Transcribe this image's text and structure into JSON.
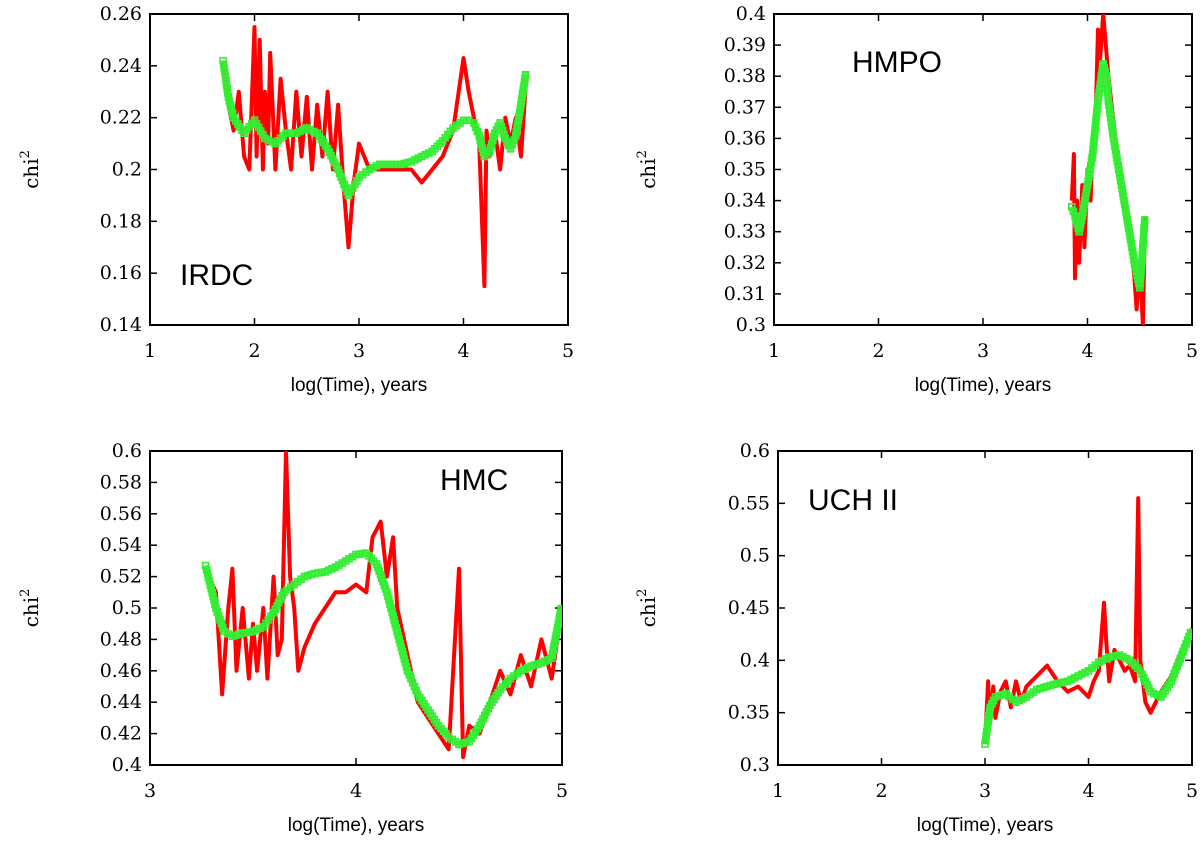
{
  "chart_data": [
    {
      "type": "line",
      "panel_label": "IRDC",
      "xlabel": "log(Time), years",
      "ylabel": "chi",
      "ylabel_sup": "2",
      "xlim": [
        1,
        5
      ],
      "ylim": [
        0.14,
        0.26
      ],
      "xticks": [
        "1",
        "2",
        "3",
        "4",
        "5"
      ],
      "xtick_values": [
        1,
        2,
        3,
        4,
        5
      ],
      "yticks": [
        "0.14",
        "0.16",
        "0.18",
        "0.2",
        "0.22",
        "0.24",
        "0.26"
      ],
      "ytick_values": [
        0.14,
        0.16,
        0.18,
        0.2,
        0.22,
        0.24,
        0.26
      ],
      "series": [
        {
          "color": "#ff0000",
          "style": "line",
          "x": [
            1.7,
            1.75,
            1.8,
            1.85,
            1.9,
            1.95,
            2.0,
            2.02,
            2.05,
            2.08,
            2.1,
            2.13,
            2.15,
            2.2,
            2.25,
            2.3,
            2.35,
            2.4,
            2.45,
            2.5,
            2.55,
            2.6,
            2.65,
            2.7,
            2.75,
            2.8,
            2.85,
            2.9,
            2.95,
            3.0,
            3.1,
            3.2,
            3.3,
            3.4,
            3.5,
            3.6,
            3.7,
            3.8,
            3.9,
            4.0,
            4.05,
            4.1,
            4.15,
            4.2,
            4.22,
            4.25,
            4.3,
            4.35,
            4.4,
            4.45,
            4.5,
            4.55,
            4.6
          ],
          "y": [
            0.242,
            0.225,
            0.215,
            0.23,
            0.205,
            0.2,
            0.255,
            0.205,
            0.25,
            0.2,
            0.23,
            0.21,
            0.245,
            0.2,
            0.235,
            0.215,
            0.2,
            0.23,
            0.205,
            0.228,
            0.2,
            0.225,
            0.205,
            0.23,
            0.2,
            0.225,
            0.195,
            0.17,
            0.195,
            0.21,
            0.2,
            0.2,
            0.2,
            0.2,
            0.2,
            0.195,
            0.2,
            0.205,
            0.215,
            0.243,
            0.23,
            0.22,
            0.21,
            0.155,
            0.215,
            0.205,
            0.215,
            0.2,
            0.22,
            0.21,
            0.22,
            0.205,
            0.235
          ]
        },
        {
          "color": "#33ee33",
          "style": "dots",
          "x": [
            1.7,
            1.75,
            1.8,
            1.9,
            2.0,
            2.1,
            2.2,
            2.3,
            2.4,
            2.5,
            2.6,
            2.7,
            2.8,
            2.9,
            3.0,
            3.1,
            3.2,
            3.3,
            3.4,
            3.5,
            3.6,
            3.7,
            3.8,
            3.9,
            4.0,
            4.05,
            4.1,
            4.15,
            4.2,
            4.25,
            4.3,
            4.35,
            4.4,
            4.45,
            4.5,
            4.55,
            4.6
          ],
          "y": [
            0.242,
            0.228,
            0.22,
            0.214,
            0.219,
            0.212,
            0.21,
            0.214,
            0.214,
            0.216,
            0.214,
            0.208,
            0.2,
            0.19,
            0.197,
            0.2,
            0.202,
            0.202,
            0.202,
            0.203,
            0.205,
            0.207,
            0.211,
            0.216,
            0.219,
            0.219,
            0.218,
            0.213,
            0.205,
            0.207,
            0.214,
            0.218,
            0.212,
            0.208,
            0.213,
            0.225,
            0.238
          ]
        }
      ]
    },
    {
      "type": "line",
      "panel_label": "HMPO",
      "xlabel": "log(Time), years",
      "ylabel": "chi",
      "ylabel_sup": "2",
      "xlim": [
        1,
        5
      ],
      "ylim": [
        0.3,
        0.4
      ],
      "xticks": [
        "1",
        "2",
        "3",
        "4",
        "5"
      ],
      "xtick_values": [
        1,
        2,
        3,
        4,
        5
      ],
      "yticks": [
        "0.3",
        "0.31",
        "0.32",
        "0.33",
        "0.34",
        "0.35",
        "0.36",
        "0.37",
        "0.38",
        "0.39",
        "0.4"
      ],
      "ytick_values": [
        0.3,
        0.31,
        0.32,
        0.33,
        0.34,
        0.35,
        0.36,
        0.37,
        0.38,
        0.39,
        0.4
      ],
      "series": [
        {
          "color": "#ff0000",
          "style": "line",
          "x": [
            3.85,
            3.87,
            3.88,
            3.9,
            3.92,
            3.95,
            3.97,
            4.0,
            4.03,
            4.05,
            4.08,
            4.1,
            4.12,
            4.15,
            4.17,
            4.2,
            4.25,
            4.3,
            4.35,
            4.4,
            4.45,
            4.47,
            4.5,
            4.53,
            4.55
          ],
          "y": [
            0.34,
            0.355,
            0.315,
            0.34,
            0.32,
            0.345,
            0.325,
            0.35,
            0.34,
            0.36,
            0.37,
            0.395,
            0.385,
            0.4,
            0.392,
            0.38,
            0.365,
            0.35,
            0.34,
            0.33,
            0.315,
            0.305,
            0.32,
            0.3,
            0.335
          ]
        },
        {
          "color": "#33ee33",
          "style": "dots",
          "x": [
            3.85,
            3.88,
            3.92,
            3.95,
            4.0,
            4.05,
            4.1,
            4.15,
            4.18,
            4.2,
            4.25,
            4.3,
            4.35,
            4.4,
            4.45,
            4.5,
            4.52,
            4.55
          ],
          "y": [
            0.338,
            0.335,
            0.33,
            0.335,
            0.345,
            0.355,
            0.372,
            0.384,
            0.38,
            0.372,
            0.36,
            0.35,
            0.34,
            0.33,
            0.32,
            0.312,
            0.32,
            0.335
          ]
        }
      ]
    },
    {
      "type": "line",
      "panel_label": "HMC",
      "xlabel": "log(Time), years",
      "ylabel": "chi",
      "ylabel_sup": "2",
      "xlim": [
        3,
        5
      ],
      "ylim": [
        0.4,
        0.6
      ],
      "xticks": [
        "3",
        "4",
        "5"
      ],
      "xtick_values": [
        3,
        4,
        5
      ],
      "yticks": [
        "0.4",
        "0.42",
        "0.44",
        "0.46",
        "0.48",
        "0.5",
        "0.52",
        "0.54",
        "0.56",
        "0.58",
        "0.6"
      ],
      "ytick_values": [
        0.4,
        0.42,
        0.44,
        0.46,
        0.48,
        0.5,
        0.52,
        0.54,
        0.56,
        0.58,
        0.6
      ],
      "series": [
        {
          "color": "#ff0000",
          "style": "line",
          "x": [
            3.27,
            3.32,
            3.35,
            3.38,
            3.4,
            3.42,
            3.45,
            3.48,
            3.5,
            3.52,
            3.55,
            3.57,
            3.6,
            3.62,
            3.64,
            3.66,
            3.68,
            3.7,
            3.72,
            3.75,
            3.8,
            3.85,
            3.9,
            3.95,
            4.0,
            4.05,
            4.08,
            4.1,
            4.12,
            4.15,
            4.18,
            4.2,
            4.25,
            4.3,
            4.35,
            4.4,
            4.45,
            4.5,
            4.52,
            4.55,
            4.6,
            4.65,
            4.7,
            4.75,
            4.8,
            4.85,
            4.9,
            4.95,
            5.0
          ],
          "y": [
            0.525,
            0.51,
            0.445,
            0.5,
            0.525,
            0.46,
            0.5,
            0.455,
            0.49,
            0.46,
            0.5,
            0.455,
            0.52,
            0.47,
            0.48,
            0.6,
            0.52,
            0.5,
            0.46,
            0.475,
            0.49,
            0.5,
            0.51,
            0.51,
            0.515,
            0.51,
            0.545,
            0.55,
            0.555,
            0.52,
            0.545,
            0.5,
            0.47,
            0.44,
            0.43,
            0.42,
            0.41,
            0.525,
            0.405,
            0.425,
            0.42,
            0.44,
            0.46,
            0.445,
            0.47,
            0.45,
            0.48,
            0.455,
            0.5
          ]
        },
        {
          "color": "#33ee33",
          "style": "dots",
          "x": [
            3.27,
            3.32,
            3.36,
            3.4,
            3.45,
            3.5,
            3.55,
            3.6,
            3.65,
            3.7,
            3.75,
            3.8,
            3.85,
            3.9,
            3.95,
            4.0,
            4.05,
            4.1,
            4.15,
            4.2,
            4.25,
            4.3,
            4.35,
            4.4,
            4.45,
            4.5,
            4.55,
            4.6,
            4.65,
            4.7,
            4.75,
            4.8,
            4.85,
            4.9,
            4.95,
            5.0
          ],
          "y": [
            0.527,
            0.5,
            0.485,
            0.482,
            0.484,
            0.485,
            0.488,
            0.497,
            0.51,
            0.515,
            0.52,
            0.522,
            0.523,
            0.526,
            0.53,
            0.534,
            0.535,
            0.528,
            0.51,
            0.485,
            0.46,
            0.445,
            0.435,
            0.425,
            0.418,
            0.413,
            0.415,
            0.425,
            0.438,
            0.448,
            0.455,
            0.46,
            0.463,
            0.465,
            0.468,
            0.502
          ]
        }
      ]
    },
    {
      "type": "line",
      "panel_label": "UCH II",
      "xlabel": "log(Time), years",
      "ylabel": "chi",
      "ylabel_sup": "2",
      "xlim": [
        1,
        5
      ],
      "ylim": [
        0.3,
        0.6
      ],
      "xticks": [
        "1",
        "2",
        "3",
        "4",
        "5"
      ],
      "xtick_values": [
        1,
        2,
        3,
        4,
        5
      ],
      "yticks": [
        "0.3",
        "0.35",
        "0.4",
        "0.45",
        "0.5",
        "0.55",
        "0.6"
      ],
      "ytick_values": [
        0.3,
        0.35,
        0.4,
        0.45,
        0.5,
        0.55,
        0.6
      ],
      "series": [
        {
          "color": "#ff0000",
          "style": "line",
          "x": [
            3.0,
            3.03,
            3.05,
            3.08,
            3.1,
            3.15,
            3.2,
            3.25,
            3.3,
            3.35,
            3.4,
            3.5,
            3.6,
            3.7,
            3.8,
            3.9,
            4.0,
            4.05,
            4.1,
            4.15,
            4.17,
            4.2,
            4.25,
            4.3,
            4.35,
            4.4,
            4.45,
            4.48,
            4.5,
            4.55,
            4.6,
            4.65,
            4.7,
            4.8,
            4.9,
            5.0
          ],
          "y": [
            0.32,
            0.38,
            0.34,
            0.375,
            0.345,
            0.37,
            0.38,
            0.355,
            0.38,
            0.36,
            0.375,
            0.385,
            0.395,
            0.38,
            0.37,
            0.375,
            0.365,
            0.38,
            0.39,
            0.455,
            0.42,
            0.38,
            0.41,
            0.4,
            0.39,
            0.395,
            0.38,
            0.555,
            0.4,
            0.36,
            0.35,
            0.36,
            0.37,
            0.385,
            0.41,
            0.43
          ]
        },
        {
          "color": "#33ee33",
          "style": "dots",
          "x": [
            3.0,
            3.05,
            3.1,
            3.2,
            3.3,
            3.4,
            3.5,
            3.6,
            3.7,
            3.8,
            3.9,
            4.0,
            4.1,
            4.2,
            4.3,
            4.4,
            4.5,
            4.6,
            4.7,
            4.8,
            4.9,
            5.0
          ],
          "y": [
            0.32,
            0.355,
            0.365,
            0.368,
            0.36,
            0.365,
            0.372,
            0.375,
            0.378,
            0.38,
            0.385,
            0.39,
            0.398,
            0.403,
            0.405,
            0.4,
            0.39,
            0.37,
            0.365,
            0.38,
            0.405,
            0.43
          ]
        }
      ]
    }
  ]
}
